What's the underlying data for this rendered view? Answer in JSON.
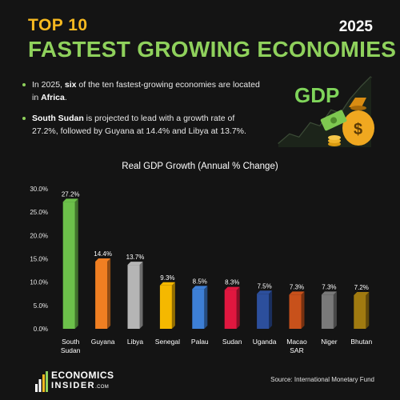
{
  "header": {
    "top_label": "TOP 10",
    "year": "2025",
    "main_title": "FASTEST GROWING ECONOMIES"
  },
  "bullets": [
    {
      "parts": [
        "In 2025, ",
        "six",
        " of the ten fastest-growing economies are located in ",
        "Africa",
        "."
      ]
    },
    {
      "parts": [
        "South Sudan",
        " is projected to lead with a growth rate of 27.2%, followed by Guyana at 14.4% and Libya at 13.7%."
      ]
    }
  ],
  "illustration": {
    "label": "GDP",
    "coin_symbol": "$"
  },
  "chart_data": {
    "type": "bar",
    "title": "Real GDP Growth (Annual % Change)",
    "categories": [
      "South Sudan",
      "Guyana",
      "Libya",
      "Senegal",
      "Palau",
      "Sudan",
      "Uganda",
      "Macao SAR",
      "Niger",
      "Bhutan"
    ],
    "category_lines": [
      [
        "South",
        "Sudan"
      ],
      [
        "Guyana"
      ],
      [
        "Libya"
      ],
      [
        "Senegal"
      ],
      [
        "Palau"
      ],
      [
        "Sudan"
      ],
      [
        "Uganda"
      ],
      [
        "Macao",
        "SAR"
      ],
      [
        "Niger"
      ],
      [
        "Bhutan"
      ]
    ],
    "values": [
      27.2,
      14.4,
      13.7,
      9.3,
      8.5,
      8.3,
      7.5,
      7.3,
      7.3,
      7.2
    ],
    "value_labels": [
      "27.2%",
      "14.4%",
      "13.7%",
      "9.3%",
      "8.5%",
      "8.3%",
      "7.5%",
      "7.3%",
      "7.3%",
      "7.2%"
    ],
    "colors": [
      "#6cc04a",
      "#f07f22",
      "#b5b5b5",
      "#f5b800",
      "#3d7fd6",
      "#e0173f",
      "#2c4f9c",
      "#c8511b",
      "#7a7a7a",
      "#a07a10"
    ],
    "ylim": [
      0,
      30
    ],
    "yticks": [
      0,
      5,
      10,
      15,
      20,
      25,
      30
    ],
    "ytick_labels": [
      "0.0%",
      "5.0%",
      "10.0%",
      "15.0%",
      "20.0%",
      "25.0%",
      "30.0%"
    ],
    "grid": false,
    "legend": "none"
  },
  "footer": {
    "logo_top": "ECONOMICS",
    "logo_bottom": "INSIDER",
    "logo_suffix": ".COM",
    "source": "Source: International Monetary Fund"
  },
  "colors": {
    "accent_yellow": "#f6b920",
    "accent_green": "#8fd15c",
    "background": "#141414"
  }
}
